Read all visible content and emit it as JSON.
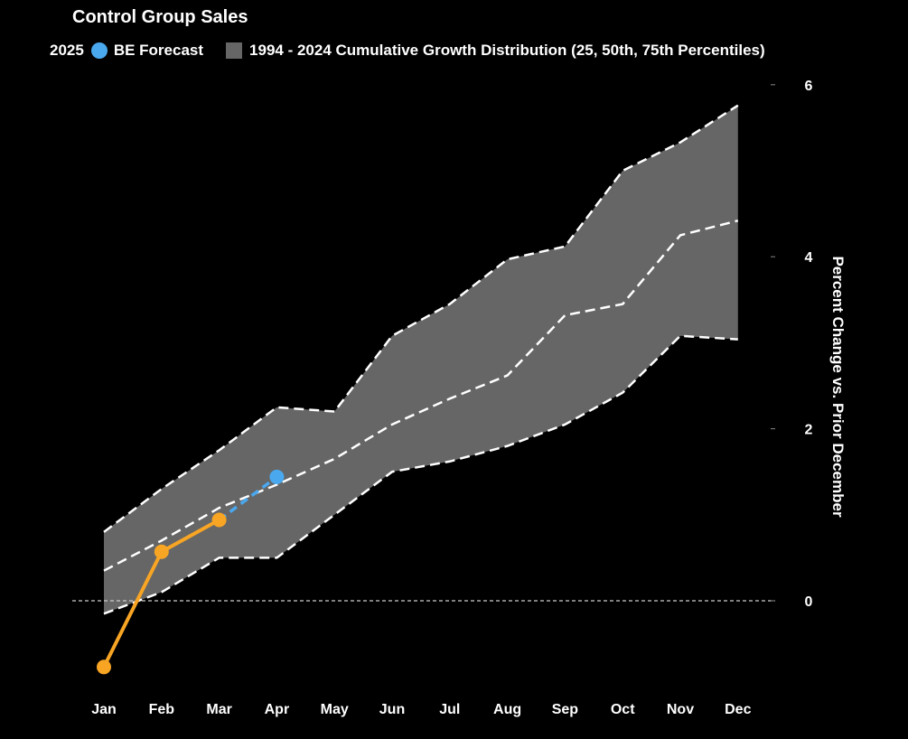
{
  "chart_data": {
    "type": "area",
    "title": "Control Group Sales",
    "ylabel": "Percent Change vs. Prior December",
    "xlabel": "",
    "ylim": [
      -1.2,
      6
    ],
    "yticks": [
      0,
      2,
      4,
      6
    ],
    "categories": [
      "Jan",
      "Feb",
      "Mar",
      "Apr",
      "May",
      "Jun",
      "Jul",
      "Aug",
      "Sep",
      "Oct",
      "Nov",
      "Dec"
    ],
    "colors": {
      "actual": "#f8a524",
      "forecast": "#4aa8ef",
      "band": "#666666",
      "percentile_line": "#ffffff",
      "zero_line": "#cccccc"
    },
    "legend": {
      "actual": "2025",
      "forecast": "BE Forecast",
      "band": "1994 - 2024 Cumulative Growth Distribution (25, 50th, 75th Percentiles)"
    },
    "series": [
      {
        "name": "25th Percentile",
        "values": [
          -0.15,
          0.1,
          0.5,
          0.5,
          1.0,
          1.5,
          1.62,
          1.8,
          2.05,
          2.42,
          3.08,
          3.04
        ]
      },
      {
        "name": "50th Percentile",
        "values": [
          0.35,
          0.7,
          1.08,
          1.35,
          1.65,
          2.05,
          2.35,
          2.62,
          3.32,
          3.45,
          4.25,
          4.42
        ]
      },
      {
        "name": "75th Percentile",
        "values": [
          0.8,
          1.3,
          1.75,
          2.25,
          2.2,
          3.08,
          3.45,
          3.97,
          4.12,
          5.0,
          5.33,
          5.76
        ]
      },
      {
        "name": "2025",
        "values": [
          -0.77,
          0.57,
          0.94,
          null,
          null,
          null,
          null,
          null,
          null,
          null,
          null,
          null
        ]
      },
      {
        "name": "BE Forecast",
        "values": [
          null,
          null,
          0.94,
          1.44,
          null,
          null,
          null,
          null,
          null,
          null,
          null,
          null
        ]
      }
    ]
  }
}
